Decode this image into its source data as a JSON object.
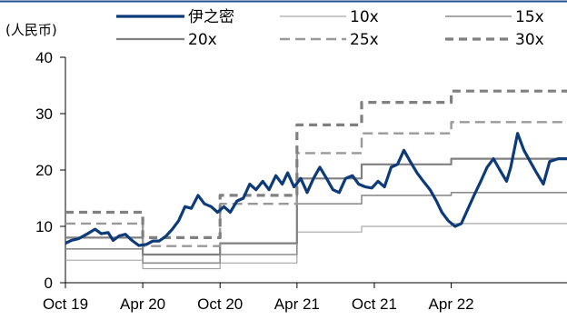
{
  "colors": {
    "top_rule": "#1f4e8c",
    "axis": "#000000",
    "stock_line": "#0d3b7a",
    "band_10x": "#a6a6a6",
    "band_15x": "#8c8c8c",
    "band_20x": "#808080",
    "band_25x": "#999999",
    "band_30x": "#808080"
  },
  "chart_data": {
    "type": "line",
    "unit_label": "(人民币)",
    "ylim": [
      0,
      40
    ],
    "y_ticks": [
      0,
      10,
      20,
      30,
      40
    ],
    "x_tick_labels": [
      "Oct 19",
      "Apr 20",
      "Oct 20",
      "Apr 21",
      "Oct 21",
      "Apr 22"
    ],
    "x_ticks": [
      "2019-10-01",
      "2020-04-01",
      "2020-10-01",
      "2021-04-01",
      "2021-10-01",
      "2022-04-01"
    ],
    "xlim": [
      "2019-10-01",
      "2022-12-31"
    ],
    "grid": false,
    "legend_position": "top",
    "series": [
      {
        "name": "伊之密",
        "style": "solid-thick",
        "points": [
          [
            "2019-10-01",
            7.0
          ],
          [
            "2019-10-15",
            7.5
          ],
          [
            "2019-11-01",
            7.8
          ],
          [
            "2019-11-20",
            8.6
          ],
          [
            "2019-12-10",
            9.5
          ],
          [
            "2019-12-25",
            8.7
          ],
          [
            "2020-01-10",
            8.9
          ],
          [
            "2020-01-22",
            7.5
          ],
          [
            "2020-02-05",
            8.3
          ],
          [
            "2020-02-20",
            8.6
          ],
          [
            "2020-03-05",
            7.6
          ],
          [
            "2020-03-23",
            6.6
          ],
          [
            "2020-04-10",
            6.8
          ],
          [
            "2020-04-25",
            7.4
          ],
          [
            "2020-05-10",
            7.4
          ],
          [
            "2020-05-25",
            8.2
          ],
          [
            "2020-06-10",
            9.5
          ],
          [
            "2020-06-25",
            11.0
          ],
          [
            "2020-07-10",
            13.5
          ],
          [
            "2020-07-25",
            13.2
          ],
          [
            "2020-08-10",
            15.5
          ],
          [
            "2020-08-25",
            14.0
          ],
          [
            "2020-09-10",
            13.5
          ],
          [
            "2020-09-25",
            12.5
          ],
          [
            "2020-10-10",
            13.5
          ],
          [
            "2020-10-25",
            12.5
          ],
          [
            "2020-11-10",
            14.5
          ],
          [
            "2020-11-25",
            15.0
          ],
          [
            "2020-12-10",
            17.5
          ],
          [
            "2020-12-25",
            16.5
          ],
          [
            "2021-01-10",
            18.0
          ],
          [
            "2021-01-25",
            16.5
          ],
          [
            "2021-02-10",
            19.0
          ],
          [
            "2021-02-25",
            17.5
          ],
          [
            "2021-03-10",
            19.5
          ],
          [
            "2021-03-25",
            17.0
          ],
          [
            "2021-04-10",
            18.5
          ],
          [
            "2021-04-25",
            16.0
          ],
          [
            "2021-05-10",
            18.5
          ],
          [
            "2021-05-25",
            20.5
          ],
          [
            "2021-06-10",
            18.5
          ],
          [
            "2021-06-25",
            16.5
          ],
          [
            "2021-07-10",
            16.0
          ],
          [
            "2021-07-25",
            18.5
          ],
          [
            "2021-08-10",
            19.0
          ],
          [
            "2021-08-25",
            17.5
          ],
          [
            "2021-09-10",
            17.0
          ],
          [
            "2021-09-25",
            16.8
          ],
          [
            "2021-10-10",
            18.0
          ],
          [
            "2021-10-25",
            17.0
          ],
          [
            "2021-11-10",
            20.5
          ],
          [
            "2021-11-25",
            21.0
          ],
          [
            "2021-12-10",
            23.5
          ],
          [
            "2021-12-25",
            21.5
          ],
          [
            "2022-01-10",
            19.5
          ],
          [
            "2022-01-25",
            18.0
          ],
          [
            "2022-02-10",
            16.5
          ],
          [
            "2022-02-25",
            14.5
          ],
          [
            "2022-03-10",
            12.5
          ],
          [
            "2022-03-25",
            11.0
          ],
          [
            "2022-04-10",
            10.0
          ],
          [
            "2022-04-25",
            10.5
          ],
          [
            "2022-05-10",
            13.0
          ],
          [
            "2022-05-25",
            15.5
          ],
          [
            "2022-06-10",
            18.0
          ],
          [
            "2022-06-25",
            20.5
          ],
          [
            "2022-07-10",
            22.0
          ],
          [
            "2022-07-25",
            20.0
          ],
          [
            "2022-08-10",
            18.0
          ],
          [
            "2022-08-20",
            20.5
          ],
          [
            "2022-09-05",
            26.5
          ],
          [
            "2022-09-20",
            23.5
          ],
          [
            "2022-10-05",
            21.5
          ],
          [
            "2022-10-20",
            19.5
          ],
          [
            "2022-11-05",
            17.5
          ],
          [
            "2022-11-20",
            21.5
          ],
          [
            "2022-12-10",
            22.0
          ],
          [
            "2022-12-31",
            22.0
          ]
        ]
      },
      {
        "name": "10x",
        "style": "solid-thin",
        "points": [
          [
            "2019-10-01",
            4.0
          ],
          [
            "2020-04-01",
            4.0
          ],
          [
            "2020-04-01",
            2.5
          ],
          [
            "2020-10-01",
            2.5
          ],
          [
            "2020-10-01",
            3.5
          ],
          [
            "2021-04-01",
            3.5
          ],
          [
            "2021-04-01",
            9.0
          ],
          [
            "2021-09-01",
            9.0
          ],
          [
            "2021-09-01",
            10.0
          ],
          [
            "2022-04-01",
            10.0
          ],
          [
            "2022-04-01",
            10.5
          ],
          [
            "2022-12-31",
            10.5
          ]
        ]
      },
      {
        "name": "15x",
        "style": "solid-thin",
        "points": [
          [
            "2019-10-01",
            6.0
          ],
          [
            "2020-04-01",
            6.0
          ],
          [
            "2020-04-01",
            3.5
          ],
          [
            "2020-10-01",
            3.5
          ],
          [
            "2020-10-01",
            5.0
          ],
          [
            "2021-04-01",
            5.0
          ],
          [
            "2021-04-01",
            14.0
          ],
          [
            "2021-09-01",
            14.0
          ],
          [
            "2021-09-01",
            15.5
          ],
          [
            "2022-04-01",
            15.5
          ],
          [
            "2022-04-01",
            16.0
          ],
          [
            "2022-12-31",
            16.0
          ]
        ]
      },
      {
        "name": "20x",
        "style": "solid-medium",
        "points": [
          [
            "2019-10-01",
            8.0
          ],
          [
            "2020-04-01",
            8.0
          ],
          [
            "2020-04-01",
            5.0
          ],
          [
            "2020-10-01",
            5.0
          ],
          [
            "2020-10-01",
            7.0
          ],
          [
            "2021-04-01",
            7.0
          ],
          [
            "2021-04-01",
            18.5
          ],
          [
            "2021-09-01",
            18.5
          ],
          [
            "2021-09-01",
            21.0
          ],
          [
            "2022-04-01",
            21.0
          ],
          [
            "2022-04-01",
            22.0
          ],
          [
            "2022-12-31",
            22.0
          ]
        ]
      },
      {
        "name": "25x",
        "style": "dashed",
        "points": [
          [
            "2019-10-01",
            10.5
          ],
          [
            "2020-04-01",
            10.5
          ],
          [
            "2020-04-01",
            6.5
          ],
          [
            "2020-10-01",
            6.5
          ],
          [
            "2020-10-01",
            14.0
          ],
          [
            "2021-04-01",
            14.0
          ],
          [
            "2021-04-01",
            23.0
          ],
          [
            "2021-09-01",
            23.0
          ],
          [
            "2021-09-01",
            26.5
          ],
          [
            "2022-04-01",
            26.5
          ],
          [
            "2022-04-01",
            28.5
          ],
          [
            "2022-12-31",
            28.5
          ]
        ]
      },
      {
        "name": "30x",
        "style": "dashed-thick",
        "points": [
          [
            "2019-10-01",
            12.5
          ],
          [
            "2020-04-01",
            12.5
          ],
          [
            "2020-04-01",
            8.0
          ],
          [
            "2020-10-01",
            8.0
          ],
          [
            "2020-10-01",
            15.5
          ],
          [
            "2021-04-01",
            15.5
          ],
          [
            "2021-04-01",
            28.0
          ],
          [
            "2021-09-01",
            28.0
          ],
          [
            "2021-09-01",
            32.0
          ],
          [
            "2022-04-01",
            32.0
          ],
          [
            "2022-04-01",
            34.0
          ],
          [
            "2022-12-31",
            34.0
          ]
        ]
      }
    ]
  }
}
